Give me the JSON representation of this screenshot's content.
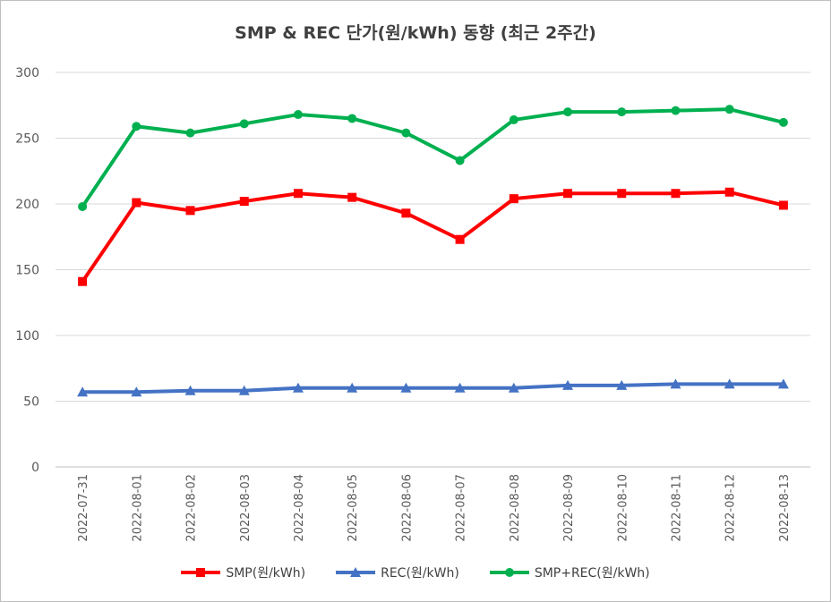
{
  "chart_data": {
    "type": "line",
    "title": "SMP & REC 단가(원/kWh) 동향 (최근 2주간)",
    "categories": [
      "2022-07-31",
      "2022-08-01",
      "2022-08-02",
      "2022-08-03",
      "2022-08-04",
      "2022-08-05",
      "2022-08-06",
      "2022-08-07",
      "2022-08-08",
      "2022-08-09",
      "2022-08-10",
      "2022-08-11",
      "2022-08-12",
      "2022-08-13"
    ],
    "ylim": [
      0,
      300
    ],
    "yticks": [
      0,
      50,
      100,
      150,
      200,
      250,
      300
    ],
    "grid": true,
    "legend_position": "bottom",
    "series": [
      {
        "name": "SMP(원/kWh)",
        "color": "#ff0000",
        "marker": "square",
        "values": [
          141,
          201,
          195,
          202,
          208,
          205,
          193,
          173,
          204,
          208,
          208,
          208,
          209,
          199
        ]
      },
      {
        "name": "REC(원/kWh)",
        "color": "#4472c4",
        "marker": "triangle",
        "values": [
          57,
          57,
          58,
          58,
          60,
          60,
          60,
          60,
          60,
          62,
          62,
          63,
          63,
          63
        ]
      },
      {
        "name": "SMP+REC(원/kWh)",
        "color": "#00b050",
        "marker": "circle",
        "values": [
          198,
          259,
          254,
          261,
          268,
          265,
          254,
          233,
          264,
          270,
          270,
          271,
          272,
          262
        ]
      }
    ]
  }
}
